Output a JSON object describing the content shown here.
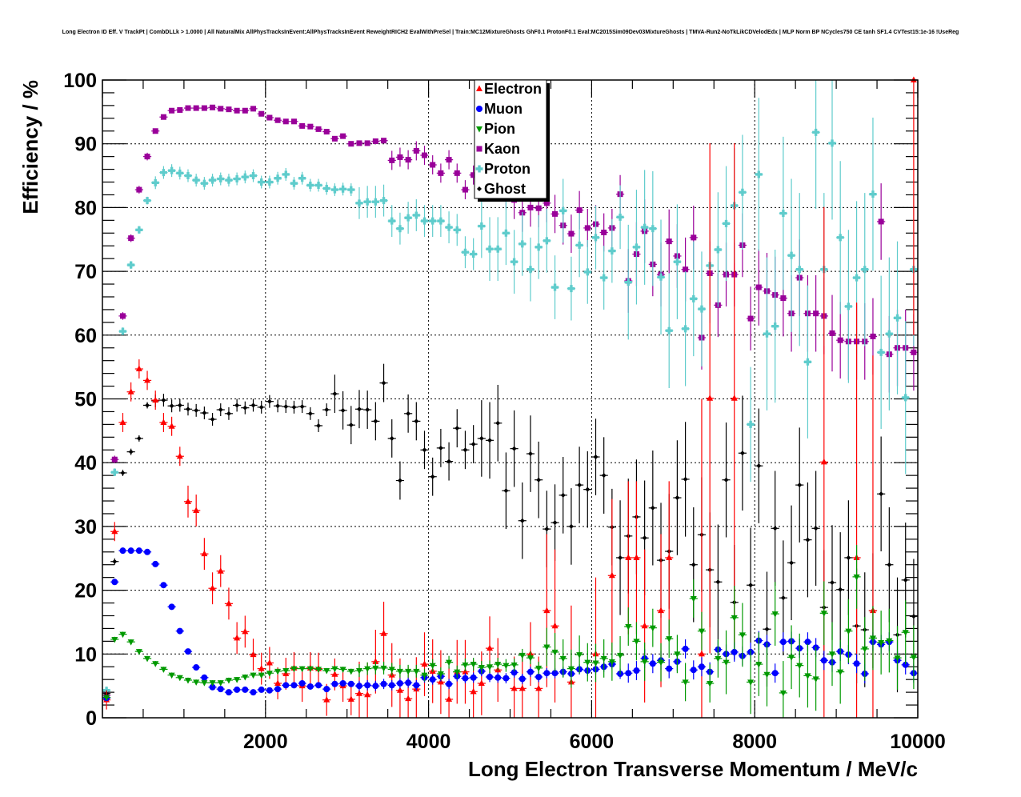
{
  "chart_data": {
    "type": "scatter",
    "title": "Long Electron ID Eff. V TrackPt | CombDLLk > 1.0000 | All NaturalMix AllPhysTracksInEvent:AllPhysTracksInEvent ReweightRICH2 EvalWithPreSel | Train:MC12MixtureGhosts GhF0.1 ProtonF0.1 Eval:MC2015Sim09Dev03MixtureGhosts | TMVA-Run2-NoTkLikCDVelodEdx | MLP Norm BP NCycles750 CE tanh SF1.4 CVTest15:1e-16 !UseReg",
    "xlabel": "Long Electron Transverse Momentum / MeV/c",
    "ylabel": "Efficiency / %",
    "xlim": [
      0,
      10000
    ],
    "ylim": [
      0,
      100
    ],
    "x_ticks": [
      "2000",
      "4000",
      "6000",
      "8000",
      "10000"
    ],
    "x_tick_values": [
      2000,
      4000,
      6000,
      8000,
      10000
    ],
    "y_ticks": [
      "0",
      "10",
      "20",
      "30",
      "40",
      "50",
      "60",
      "70",
      "80",
      "90",
      "100"
    ],
    "y_tick_values": [
      0,
      10,
      20,
      30,
      40,
      50,
      60,
      70,
      80,
      90,
      100
    ],
    "grid": true,
    "legend_position": "top-center",
    "bin_width": 100,
    "x_first_bin_center": 50,
    "series": [
      {
        "name": "Kaon",
        "color": "#990099",
        "marker": "square",
        "values": [
          3.5,
          40.5,
          63,
          75.2,
          82.8,
          88,
          92,
          94.2,
          95.2,
          95.3,
          95.6,
          95.6,
          95.6,
          95.7,
          95.5,
          95.4,
          95.2,
          95.2,
          95.5,
          94.7,
          94.1,
          93.7,
          93.5,
          93.5,
          92.8,
          92.7,
          92.3,
          91.9,
          90.8,
          91.2,
          90.0,
          90.1,
          90.1,
          90.4,
          90.5,
          87.4,
          87.9,
          87.5,
          88.9,
          88.2,
          86.7,
          85.4,
          87.5,
          85.4,
          82.8,
          85.1,
          84,
          83,
          82.5,
          81.5,
          81.2,
          79.2,
          80.0,
          79.9,
          80.7,
          79,
          77.2,
          75.9,
          79.6,
          76.8,
          77.4,
          76.1,
          76.8,
          82.1,
          68.5,
          72.7,
          76.3,
          71.1,
          69.5,
          74.7,
          72.4,
          70.3,
          75.3,
          59.6,
          69.7,
          64.7,
          69.5,
          69.5,
          74.1,
          62.6,
          67.5,
          66.9,
          66.3,
          65.8,
          63.4,
          69.0,
          63.4,
          63.4,
          63.0,
          60.3,
          59.2,
          59.0,
          59.0,
          59.0,
          59.8,
          77.8,
          57.0,
          58.0,
          58.0,
          57.3
        ],
        "yerr_segments": [
          [
            0,
            5,
            0.6
          ],
          [
            6,
            34,
            0.4
          ],
          [
            35,
            49,
            1.5
          ],
          [
            50,
            63,
            3
          ],
          [
            64,
            79,
            5
          ],
          [
            80,
            99,
            6
          ]
        ]
      },
      {
        "name": "Proton",
        "color": "#5fcccc",
        "marker": "cross",
        "values": [
          4.3,
          38.5,
          60.6,
          71.0,
          76.5,
          81.1,
          83.9,
          85.5,
          85.8,
          85.4,
          85.0,
          84.3,
          83.8,
          84.3,
          84.5,
          84.3,
          84.5,
          84.8,
          85.0,
          84.0,
          84.0,
          84.6,
          85.2,
          83.8,
          84.6,
          83.5,
          83.5,
          83.0,
          82.8,
          82.9,
          82.8,
          80.7,
          80.9,
          80.9,
          81.1,
          77.9,
          76.7,
          78.4,
          78.8,
          77.9,
          77.9,
          77.9,
          76.9,
          76.5,
          73.0,
          72.7,
          77.1,
          73.5,
          73.5,
          76.0,
          71.5,
          74.3,
          70.3,
          73.8,
          74.8,
          67.5,
          79.5,
          67.3,
          74.1,
          69.9,
          75.3,
          69.0,
          73.2,
          78.5,
          68.3,
          73.8,
          76.9,
          76.7,
          69.1,
          60.7,
          71.5,
          61.0,
          65.7,
          64.1,
          70.9,
          73.4,
          77.5,
          80.3,
          82.4,
          46.0,
          85.2,
          60.2,
          61.4,
          79.1,
          72.5,
          70.3,
          55.8,
          91.8,
          70.3,
          90.1,
          75.3,
          64.5,
          69.0,
          70.3,
          82.1,
          57.3,
          60.2,
          62.7,
          50.2,
          70.3
        ],
        "yerr_segments": [
          [
            0,
            5,
            0.6
          ],
          [
            6,
            30,
            1
          ],
          [
            31,
            45,
            2.5
          ],
          [
            46,
            63,
            5
          ],
          [
            64,
            79,
            9
          ],
          [
            80,
            99,
            12
          ]
        ]
      },
      {
        "name": "Ghost",
        "color": "#000000",
        "marker": "dot",
        "values": [
          3.8,
          24.5,
          38.4,
          41.7,
          43.8,
          49.0,
          49.7,
          49.8,
          48.9,
          49.0,
          48.4,
          48.2,
          47.8,
          46.8,
          48.3,
          47.7,
          49.0,
          48.6,
          49.0,
          48.7,
          49.6,
          48.9,
          48.8,
          48.7,
          48.8,
          47.7,
          45.8,
          48.3,
          50.8,
          48.2,
          45.9,
          48.4,
          48.3,
          46.5,
          52.5,
          43.8,
          37.2,
          47.7,
          46.5,
          42.0,
          37.8,
          42.3,
          40.2,
          45.4,
          42.0,
          42.9,
          43.8,
          43.5,
          46.2,
          35.6,
          42.2,
          30.9,
          41.4,
          37.3,
          29.6,
          30.6,
          34.9,
          30.0,
          36.5,
          35.8,
          40.9,
          38.0,
          29.9,
          25.1,
          28.5,
          31.5,
          28.2,
          32.9,
          24.7,
          26.1,
          34.5,
          37.4,
          24.0,
          28.7,
          23.2,
          21.3,
          37.3,
          18.1,
          41.5,
          20.8,
          39.5,
          13.9,
          29.7,
          18.8,
          24.3,
          36.5,
          27.9,
          29.7,
          17.3,
          21.2,
          20.1,
          25.1,
          14.4,
          13.8,
          16.8,
          35.1,
          24.0,
          13.0,
          21.6,
          15.9
        ],
        "yerr_segments": [
          [
            0,
            5,
            0.5
          ],
          [
            6,
            27,
            1
          ],
          [
            28,
            45,
            3
          ],
          [
            46,
            62,
            6
          ],
          [
            63,
            99,
            9
          ]
        ]
      },
      {
        "name": "Electron",
        "color": "#ff0000",
        "marker": "triangle-up",
        "values": [
          2.8,
          29.2,
          46.3,
          51.1,
          54.7,
          52.9,
          49.8,
          46.3,
          45.7,
          41.0,
          33.9,
          32.5,
          25.7,
          20.3,
          23.0,
          17.9,
          12.5,
          13.5,
          9.9,
          7.7,
          8.6,
          5.4,
          6.9,
          7.8,
          5.0,
          7.8,
          7.7,
          2.8,
          6.8,
          5.0,
          2.9,
          3.8,
          3.6,
          8.8,
          13.2,
          6.7,
          4.3,
          3.0,
          4.5,
          8.4,
          7.3,
          5.6,
          2.9,
          7.2,
          7.2,
          4.1,
          5.4,
          10.9,
          7.5,
          null,
          4.6,
          4.6,
          10.0,
          4.6,
          16.8,
          14.4,
          null,
          5.6,
          null,
          null,
          10.0,
          null,
          22.3,
          null,
          25.1,
          25.1,
          14.4,
          null,
          16.8,
          25.1,
          null,
          null,
          null,
          10.0,
          50.1,
          null,
          null,
          50.1,
          null,
          null,
          null,
          null,
          null,
          null,
          null,
          null,
          null,
          null,
          40.1,
          null,
          null,
          null,
          25.1,
          null,
          16.8,
          null,
          null,
          null,
          null,
          100
        ],
        "yerr_segments": [
          [
            0,
            9,
            1.5
          ],
          [
            10,
            30,
            2.5
          ],
          [
            31,
            53,
            5
          ],
          [
            54,
            70,
            12
          ],
          [
            71,
            99,
            40
          ]
        ]
      },
      {
        "name": "Muon",
        "color": "#0000ff",
        "marker": "circle",
        "values": [
          3.1,
          21.3,
          26.2,
          26.2,
          26.2,
          26.0,
          24.1,
          20.8,
          17.4,
          13.6,
          10.4,
          7.9,
          6.3,
          4.8,
          4.5,
          4.0,
          4.4,
          4.4,
          4.0,
          4.4,
          4.3,
          4.5,
          5.1,
          5.1,
          5.4,
          4.9,
          5.1,
          4.5,
          5.3,
          5.4,
          5.3,
          5.0,
          5.1,
          5.0,
          5.3,
          5.1,
          5.4,
          5.5,
          5.1,
          6.3,
          6.0,
          6.5,
          5.3,
          6.5,
          6.2,
          6.3,
          7.3,
          6.4,
          6.3,
          6.2,
          7.1,
          6.1,
          7.2,
          6.4,
          7.0,
          7.0,
          7.2,
          6.9,
          7.6,
          7.4,
          7.6,
          8.0,
          8.4,
          6.9,
          7.0,
          7.4,
          9.3,
          8.5,
          9.0,
          7.7,
          8.8,
          10.8,
          7.5,
          8.0,
          7.2,
          10.7,
          10.0,
          10.3,
          9.7,
          10.3,
          12.1,
          11.5,
          7.0,
          11.9,
          12.0,
          10.9,
          11.9,
          11.0,
          9.0,
          8.7,
          10.4,
          9.9,
          8.5,
          6.9,
          11.9,
          11.5,
          11.9,
          9.0,
          8.3,
          7.0
        ],
        "yerr_segments": [
          [
            0,
            30,
            0.3
          ],
          [
            31,
            63,
            0.8
          ],
          [
            64,
            99,
            1.5
          ]
        ]
      },
      {
        "name": "Pion",
        "color": "#009900",
        "marker": "triangle-down",
        "values": [
          3.2,
          12.3,
          13.1,
          11.9,
          10.4,
          9.3,
          8.5,
          7.6,
          6.7,
          6.3,
          5.9,
          5.6,
          5.5,
          5.5,
          5.5,
          5.9,
          6.0,
          6.4,
          6.7,
          6.7,
          7.0,
          7.3,
          7.4,
          7.7,
          7.7,
          7.7,
          7.6,
          7.4,
          7.7,
          7.6,
          7.3,
          7.4,
          7.7,
          7.8,
          7.8,
          7.6,
          7.3,
          7.3,
          7.3,
          6.7,
          8.2,
          6.9,
          8.7,
          7.2,
          8.3,
          8.4,
          7.9,
          8.0,
          8.4,
          8.2,
          8.3,
          9.8,
          9.4,
          7.8,
          11.1,
          10.3,
          9.3,
          7.7,
          9.9,
          8.7,
          8.6,
          9.3,
          8.8,
          9.8,
          14.3,
          12.0,
          8.8,
          14.1,
          8.7,
          12.4,
          10.0,
          5.6,
          18.7,
          13.6,
          5.4,
          9.3,
          8.7,
          15.7,
          13.0,
          5.6,
          8.4,
          6.8,
          16.3,
          3.9,
          9.5,
          8.2,
          6.6,
          6.1,
          16.4,
          10.0,
          7.2,
          13.6,
          22.1,
          10.8,
          12.5,
          11.8,
          12.1,
          9.4,
          13.4,
          9.5
        ],
        "yerr_segments": [
          [
            0,
            30,
            0.4
          ],
          [
            31,
            53,
            1
          ],
          [
            54,
            75,
            3
          ],
          [
            76,
            99,
            5
          ]
        ]
      }
    ],
    "legend_order": [
      "Electron",
      "Muon",
      "Pion",
      "Kaon",
      "Proton",
      "Ghost"
    ]
  }
}
